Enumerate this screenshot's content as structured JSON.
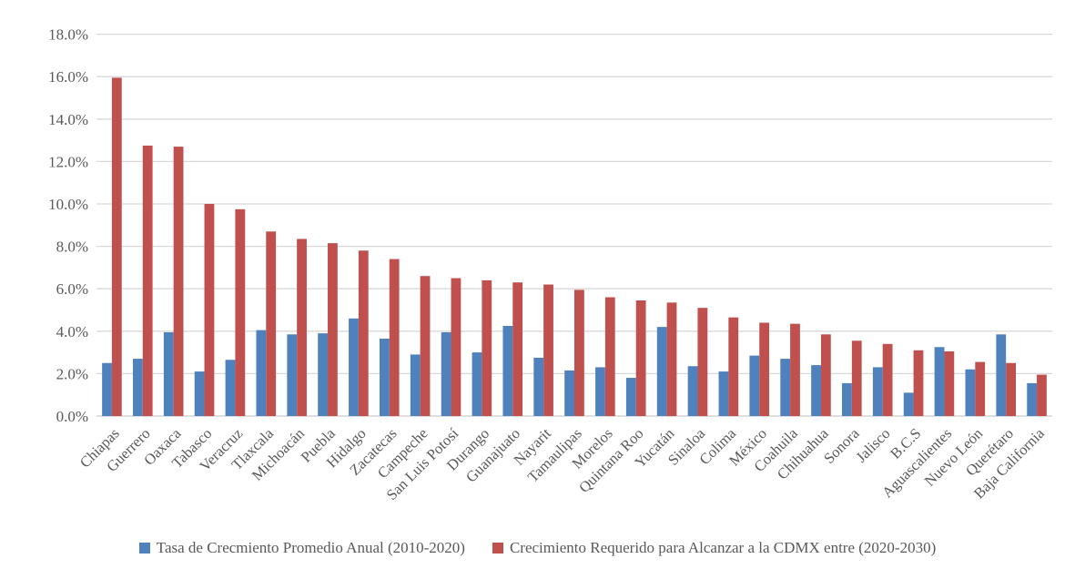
{
  "chart_data": {
    "type": "bar",
    "title": "",
    "xlabel": "",
    "ylabel": "",
    "unit": "percent",
    "ylim": [
      0,
      18
    ],
    "grid": true,
    "legend_position": "bottom",
    "y_ticks": [
      "0.0%",
      "2.0%",
      "4.0%",
      "6.0%",
      "8.0%",
      "10.0%",
      "12.0%",
      "14.0%",
      "16.0%",
      "18.0%"
    ],
    "categories": [
      "Chiapas",
      "Guerrero",
      "Oaxaca",
      "Tabasco",
      "Veracruz",
      "Tlaxcala",
      "Michoacán",
      "Puebla",
      "Hidalgo",
      "Zacatecas",
      "Campeche",
      "San Luis Potosí",
      "Durango",
      "Guanajuato",
      "Nayarit",
      "Tamaulipas",
      "Morelos",
      "Quintana Roo",
      "Yucatán",
      "Sinaloa",
      "Colima",
      "México",
      "Coahuila",
      "Chihuahua",
      "Sonora",
      "Jalisco",
      "B.C.S",
      "Aguascalientes",
      "Nuevo León",
      "Querétaro",
      "Baja California"
    ],
    "series": [
      {
        "name": "Tasa de Crecmiento Promedio Anual (2010-2020)",
        "color": "#4F81BD",
        "values": [
          2.5,
          2.7,
          3.95,
          2.1,
          2.65,
          4.05,
          3.85,
          3.9,
          4.6,
          3.65,
          2.9,
          3.95,
          3.0,
          4.25,
          2.75,
          2.15,
          2.3,
          1.8,
          4.2,
          2.35,
          2.1,
          2.85,
          2.7,
          2.4,
          1.55,
          2.3,
          1.1,
          3.25,
          2.2,
          3.85,
          1.55
        ]
      },
      {
        "name": "Crecimiento Requerido para Alcanzar a la CDMX entre (2020-2030)",
        "color": "#C0504D",
        "values": [
          15.95,
          12.75,
          12.7,
          10.0,
          9.75,
          8.7,
          8.35,
          8.15,
          7.8,
          7.4,
          6.6,
          6.5,
          6.4,
          6.3,
          6.2,
          5.95,
          5.6,
          5.45,
          5.35,
          5.1,
          4.65,
          4.4,
          4.35,
          3.85,
          3.55,
          3.4,
          3.1,
          3.05,
          2.55,
          2.5,
          1.95
        ]
      }
    ],
    "colors": {
      "grid": "#D9D9D9",
      "baseline": "#C9C9C9",
      "axis_text": "#595959",
      "background": "#FFFFFF"
    }
  }
}
